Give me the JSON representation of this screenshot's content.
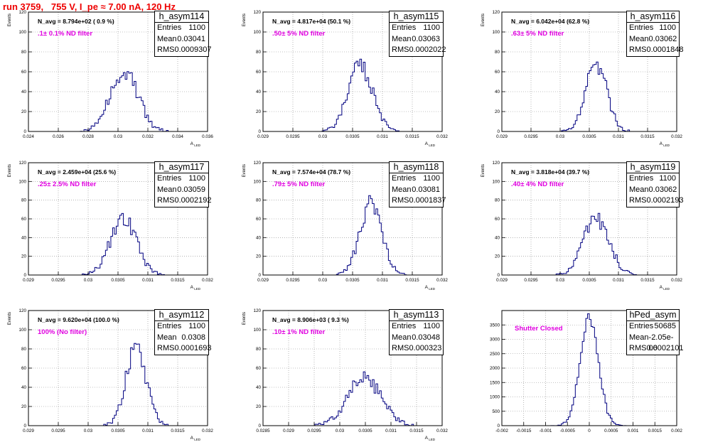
{
  "run_title": "run 3759,   755 V, I_pe ≈ 7.00 nA, 120 Hz",
  "stats_labels": {
    "entries": "Entries",
    "mean": "Mean",
    "rms": "RMS"
  },
  "chart_data": [
    {
      "type": "bar",
      "name": "h_asym114",
      "note": "N_avg = 8.794e+02 ( 0.9 %)",
      "filter": ".1± 0.1% ND filter",
      "entries": "1100",
      "mean": "0.03041",
      "rms": "0.0009307",
      "xlabel": "A_{LED}",
      "ylabel": "Events",
      "xlim": [
        0.024,
        0.036
      ],
      "ylim": [
        0,
        120
      ],
      "xticks": [
        0.024,
        0.026,
        0.028,
        0.03,
        0.032,
        0.034,
        0.036
      ],
      "xtick_labels": [
        "0.024",
        "0.026",
        "0.028",
        "0.03",
        "0.032",
        "0.034",
        "0.036"
      ],
      "yticks": [
        0,
        20,
        40,
        60,
        80,
        100,
        120
      ],
      "yint_labels": true,
      "mean_val": 0.03041,
      "sigma": 0.00093,
      "peak": 60,
      "seed": 114
    },
    {
      "type": "bar",
      "name": "h_asym115",
      "note": "N_avg = 4.817e+04 (50.1 %)",
      "filter": ".50± 5% ND filter",
      "entries": "1100",
      "mean": "0.03063",
      "rms": "0.0002022",
      "xlabel": "A_{LED}",
      "ylabel": "Events",
      "xlim": [
        0.029,
        0.032
      ],
      "ylim": [
        0,
        120
      ],
      "xticks": [
        0.029,
        0.0295,
        0.03,
        0.0305,
        0.031,
        0.0315,
        0.032
      ],
      "xtick_labels": [
        "0.029",
        "0.0295",
        "0.03",
        "0.0305",
        "0.031",
        "0.0315",
        "0.032"
      ],
      "yticks": [
        0,
        20,
        40,
        60,
        80,
        100,
        120
      ],
      "yint_labels": true,
      "mean_val": 0.03063,
      "sigma": 0.000202,
      "peak": 66,
      "seed": 115
    },
    {
      "type": "bar",
      "name": "h_asym116",
      "note": "N_avg = 6.042e+04 (62.8 %)",
      "filter": ".63± 5% ND filter",
      "entries": "1100",
      "mean": "0.03062",
      "rms": "0.0001848",
      "xlabel": "A_{LED}",
      "ylabel": "Events",
      "xlim": [
        0.029,
        0.032
      ],
      "ylim": [
        0,
        120
      ],
      "xticks": [
        0.029,
        0.0295,
        0.03,
        0.0305,
        0.031,
        0.0315,
        0.032
      ],
      "xtick_labels": [
        "0.029",
        "0.0295",
        "0.03",
        "0.0305",
        "0.031",
        "0.0315",
        "0.032"
      ],
      "yticks": [
        0,
        20,
        40,
        60,
        80,
        100,
        120
      ],
      "yint_labels": true,
      "mean_val": 0.03062,
      "sigma": 0.000185,
      "peak": 68,
      "seed": 116
    },
    {
      "type": "bar",
      "name": "h_asym117",
      "note": "N_avg = 2.459e+04 (25.6 %)",
      "filter": ".25± 2.5% ND filter",
      "entries": "1100",
      "mean": "0.03059",
      "rms": "0.0002192",
      "xlabel": "A_{LED}",
      "ylabel": "Events",
      "xlim": [
        0.029,
        0.032
      ],
      "ylim": [
        0,
        120
      ],
      "xticks": [
        0.029,
        0.0295,
        0.03,
        0.0305,
        0.031,
        0.0315,
        0.032
      ],
      "xtick_labels": [
        "0.029",
        "0.0295",
        "0.03",
        "0.0305",
        "0.031",
        "0.0315",
        "0.032"
      ],
      "yticks": [
        0,
        20,
        40,
        60,
        80,
        100,
        120
      ],
      "yint_labels": true,
      "mean_val": 0.03059,
      "sigma": 0.000219,
      "peak": 60,
      "seed": 117
    },
    {
      "type": "bar",
      "name": "h_asym118",
      "note": "N_avg = 7.574e+04 (78.7 %)",
      "filter": ".79± 5% ND filter",
      "entries": "1100",
      "mean": "0.03081",
      "rms": "0.0001837",
      "xlabel": "A_{LED}",
      "ylabel": "Events",
      "xlim": [
        0.029,
        0.032
      ],
      "ylim": [
        0,
        120
      ],
      "xticks": [
        0.029,
        0.0295,
        0.03,
        0.0305,
        0.031,
        0.0315,
        0.032
      ],
      "xtick_labels": [
        "0.029",
        "0.0295",
        "0.03",
        "0.0305",
        "0.031",
        "0.0315",
        "0.032"
      ],
      "yticks": [
        0,
        20,
        40,
        60,
        80,
        100,
        120
      ],
      "yint_labels": true,
      "mean_val": 0.03081,
      "sigma": 0.000184,
      "peak": 76,
      "seed": 118
    },
    {
      "type": "bar",
      "name": "h_asym119",
      "note": "N_avg = 3.818e+04 (39.7 %)",
      "filter": ".40± 4% ND filter",
      "entries": "1100",
      "mean": "0.03062",
      "rms": "0.0002193",
      "xlabel": "A_{LED}",
      "ylabel": "Events",
      "xlim": [
        0.029,
        0.032
      ],
      "ylim": [
        0,
        120
      ],
      "xticks": [
        0.029,
        0.0295,
        0.03,
        0.0305,
        0.031,
        0.0315,
        0.032
      ],
      "xtick_labels": [
        "0.029",
        "0.0295",
        "0.03",
        "0.0305",
        "0.031",
        "0.0315",
        "0.032"
      ],
      "yticks": [
        0,
        20,
        40,
        60,
        80,
        100,
        120
      ],
      "yint_labels": true,
      "mean_val": 0.03062,
      "sigma": 0.000219,
      "peak": 60,
      "seed": 119
    },
    {
      "type": "bar",
      "name": "h_asym112",
      "note": "N_avg = 9.620e+04 (100.0 %)",
      "filter": "100% (No filter)",
      "entries": "1100",
      "mean": "0.0308",
      "rms": "0.0001693",
      "xlabel": "A_{LED}",
      "ylabel": "Events",
      "xlim": [
        0.029,
        0.032
      ],
      "ylim": [
        0,
        120
      ],
      "xticks": [
        0.029,
        0.0295,
        0.03,
        0.0305,
        0.031,
        0.0315,
        0.032
      ],
      "xtick_labels": [
        "0.029",
        "0.0295",
        "0.03",
        "0.0305",
        "0.031",
        "0.0315",
        "0.032"
      ],
      "yticks": [
        0,
        20,
        40,
        60,
        80,
        100,
        120
      ],
      "yint_labels": true,
      "mean_val": 0.0308,
      "sigma": 0.000169,
      "peak": 82,
      "seed": 112
    },
    {
      "type": "bar",
      "name": "h_asym113",
      "note": "N_avg = 8.906e+03 ( 9.3 %)",
      "filter": ".10± 1% ND filter",
      "entries": "1100",
      "mean": "0.03048",
      "rms": "0.000323",
      "xlabel": "A_{LED}",
      "ylabel": "Events",
      "xlim": [
        0.0285,
        0.032
      ],
      "ylim": [
        0,
        120
      ],
      "xticks": [
        0.0285,
        0.029,
        0.0295,
        0.03,
        0.0305,
        0.031,
        0.0315,
        0.032
      ],
      "xtick_labels": [
        "0.0285",
        "0.029",
        "0.0295",
        "0.03",
        "0.0305",
        "0.031",
        "0.0315",
        "0.032"
      ],
      "yticks": [
        0,
        20,
        40,
        60,
        80,
        100,
        120
      ],
      "yint_labels": true,
      "mean_val": 0.03048,
      "sigma": 0.000323,
      "peak": 50,
      "seed": 113
    },
    {
      "type": "bar",
      "name": "hPed_asym",
      "note": "",
      "filter": "Shutter Closed",
      "entries": "50685",
      "mean": "-2.05e-06",
      "rms": "0.0002101",
      "xlabel": "",
      "ylabel": "",
      "xlim": [
        -0.002,
        0.002
      ],
      "ylim": [
        0,
        4000
      ],
      "xticks": [
        -0.002,
        -0.0015,
        -0.001,
        -0.0005,
        0,
        0.0005,
        0.001,
        0.0015,
        0.002
      ],
      "xtick_labels": [
        "-0.002",
        "-0.0015",
        "-0.001",
        "-0.0005",
        "0",
        "0.0005",
        "0.001",
        "0.0015",
        "0.002"
      ],
      "yticks": [
        0,
        500,
        1000,
        1500,
        2000,
        2500,
        3000,
        3500
      ],
      "yint_labels": true,
      "mean_val": -2.05e-06,
      "sigma": 0.00021,
      "peak": 3800,
      "seed": 200
    }
  ]
}
